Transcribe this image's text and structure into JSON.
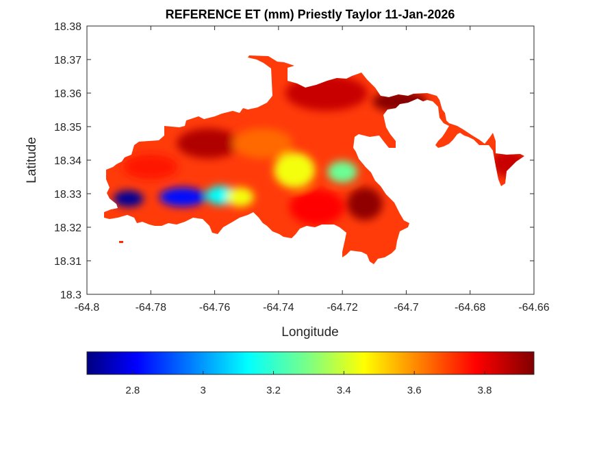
{
  "chart_data": {
    "type": "heatmap",
    "title": "REFERENCE ET (mm) Priestly Taylor 11-Jan-2026",
    "xlabel": "Longitude",
    "ylabel": "Latitude",
    "xlim": [
      -64.8,
      -64.66
    ],
    "ylim": [
      18.3,
      18.38
    ],
    "x_ticks": [
      "-64.8",
      "-64.78",
      "-64.76",
      "-64.74",
      "-64.72",
      "-64.7",
      "-64.68",
      "-64.66"
    ],
    "y_ticks": [
      "18.3",
      "18.31",
      "18.32",
      "18.33",
      "18.34",
      "18.35",
      "18.36",
      "18.37",
      "18.38"
    ],
    "colormap": "jet",
    "colorbar": {
      "orientation": "horizontal",
      "range": [
        2.67,
        3.94
      ],
      "ticks": [
        "2.8",
        "3",
        "3.2",
        "3.4",
        "3.6",
        "3.8"
      ]
    },
    "grid": false,
    "field_samples": [
      {
        "lon": -64.787,
        "lat": 18.3285,
        "value": 2.7
      },
      {
        "lon": -64.77,
        "lat": 18.329,
        "value": 2.85
      },
      {
        "lon": -64.758,
        "lat": 18.3295,
        "value": 3.15
      },
      {
        "lon": -64.752,
        "lat": 18.329,
        "value": 3.45
      },
      {
        "lon": -64.78,
        "lat": 18.338,
        "value": 3.75
      },
      {
        "lon": -64.762,
        "lat": 18.345,
        "value": 3.88
      },
      {
        "lon": -64.745,
        "lat": 18.345,
        "value": 3.65
      },
      {
        "lon": -64.735,
        "lat": 18.337,
        "value": 3.45
      },
      {
        "lon": -64.72,
        "lat": 18.3365,
        "value": 3.28
      },
      {
        "lon": -64.728,
        "lat": 18.326,
        "value": 3.78
      },
      {
        "lon": -64.713,
        "lat": 18.327,
        "value": 3.92
      },
      {
        "lon": -64.725,
        "lat": 18.36,
        "value": 3.85
      },
      {
        "lon": -64.702,
        "lat": 18.3575,
        "value": 3.93
      },
      {
        "lon": -64.668,
        "lat": 18.339,
        "value": 3.85
      }
    ]
  }
}
